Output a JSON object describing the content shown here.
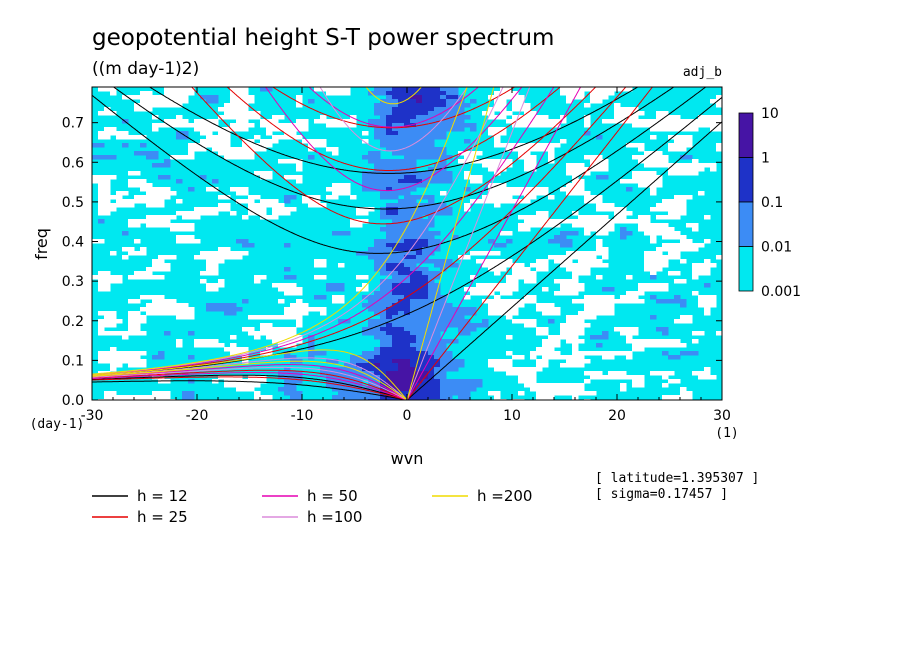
{
  "chart_data": {
    "type": "heatmap",
    "title": "geopotential height S-T power spectrum",
    "units": "((m day-1)2)",
    "run_label": "adj_b",
    "xlabel": "wvn",
    "ylabel": "freq",
    "x_unit": "(1)",
    "y_unit": "(day-1)",
    "xlim": [
      -30,
      30
    ],
    "ylim": [
      0,
      0.79
    ],
    "x_ticks": [
      -30,
      -20,
      -10,
      0,
      10,
      20,
      30
    ],
    "x_tick_labels": [
      "-30",
      "-20",
      "-10",
      "0",
      "10",
      "20",
      "30"
    ],
    "y_ticks": [
      0,
      0.1,
      0.2,
      0.3,
      0.4,
      0.5,
      0.6,
      0.7
    ],
    "y_tick_labels": [
      "0.0",
      "0.1",
      "0.2",
      "0.3",
      "0.4",
      "0.5",
      "0.6",
      "0.7"
    ],
    "color_levels": [
      0.001,
      0.01,
      0.1,
      1,
      10
    ],
    "colorbar_labels": [
      "10",
      "1",
      "0.1",
      "0.01",
      "0.001"
    ],
    "colors": {
      "below": "#ffffff",
      "lvl_0.001_0.01": "#00e8f0",
      "lvl_0.01_0.1": "#3c8cf5",
      "lvl_0.1_1": "#1e32c8",
      "lvl_1_10": "#4614a5"
    },
    "dispersion_curves": [
      {
        "label": "h = 12",
        "h": 12,
        "color": "#000000"
      },
      {
        "label": "h = 25",
        "h": 25,
        "color": "#e60000"
      },
      {
        "label": "h = 50",
        "h": 50,
        "color": "#e600b4"
      },
      {
        "label": "h =100",
        "h": 100,
        "color": "#dc8cdc"
      },
      {
        "label": "h =200",
        "h": 200,
        "color": "#f0dc00"
      }
    ],
    "annotations": [
      "[ latitude=1.395307 ]",
      "[ sigma=0.17457 ]"
    ]
  }
}
